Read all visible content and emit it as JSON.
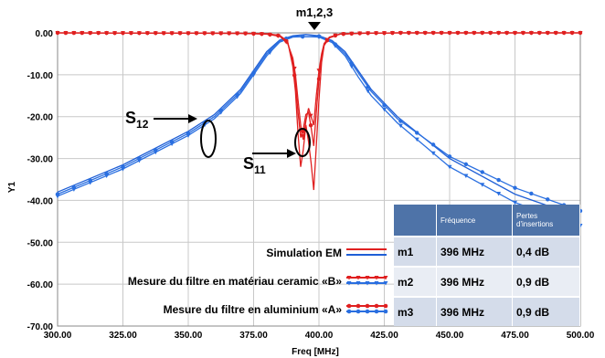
{
  "chart_data": {
    "type": "line",
    "xlabel": "Freq [MHz]",
    "ylabel": "Y1",
    "xlim": [
      300,
      500
    ],
    "ylim": [
      -70,
      0
    ],
    "x_ticks": [
      "300.00",
      "325.00",
      "350.00",
      "375.00",
      "400.00",
      "425.00",
      "450.00",
      "475.00",
      "500.00"
    ],
    "y_ticks": [
      "0.00",
      "-10.00",
      "-20.00",
      "-30.00",
      "-40.00",
      "-50.00",
      "-60.00",
      "-70.00"
    ],
    "grid": true,
    "marker_label": "m1,2,3",
    "s_labels": [
      {
        "main": "S",
        "sub": "12"
      },
      {
        "main": "S",
        "sub": "11"
      }
    ],
    "x": [
      300,
      325,
      350,
      360,
      370,
      375,
      380,
      385,
      390,
      395,
      400,
      405,
      410,
      415,
      420,
      430,
      450,
      475,
      500
    ],
    "series": [
      {
        "name": "Simulation EM",
        "param": "S12",
        "color": "#1f5fd6",
        "values": [
          -38.0,
          -31.5,
          -23.5,
          -19.5,
          -13.5,
          -9.0,
          -4.5,
          -1.7,
          -0.7,
          -0.4,
          -0.7,
          -1.8,
          -4.5,
          -9.0,
          -13.5,
          -20.0,
          -30.0,
          -38.5,
          -44.0
        ]
      },
      {
        "name": "Mesure du filtre en matériau ceramic «B»",
        "param": "S12",
        "color": "#2a6fe0",
        "values": [
          -39.0,
          -32.5,
          -24.5,
          -20.5,
          -14.5,
          -10.0,
          -5.5,
          -2.2,
          -1.0,
          -0.9,
          -1.0,
          -2.3,
          -5.5,
          -10.5,
          -15.0,
          -21.5,
          -32.0,
          -40.5,
          -46.0
        ]
      },
      {
        "name": "Mesure  du filtre en aluminium «A»",
        "param": "S12",
        "color": "#2a6fe0",
        "values": [
          -38.5,
          -32.0,
          -24.0,
          -20.0,
          -14.0,
          -9.5,
          -5.0,
          -1.9,
          -0.8,
          -0.9,
          -0.8,
          -2.0,
          -5.0,
          -9.5,
          -14.0,
          -20.5,
          -29.5,
          -37.0,
          -42.5
        ]
      }
    ],
    "s11_x": [
      300,
      370,
      380,
      385,
      388,
      390,
      391,
      392,
      393,
      394,
      395,
      396,
      397,
      398,
      399,
      400,
      401,
      402,
      404,
      408,
      415,
      430,
      500
    ],
    "s11_series": [
      {
        "name": "Simulation EM",
        "color": "#e02020",
        "values": [
          0,
          -0.1,
          -0.2,
          -0.6,
          -2.0,
          -8.0,
          -14.0,
          -24.0,
          -32.0,
          -28.0,
          -22.0,
          -26.0,
          -31.0,
          -37.5,
          -27.0,
          -16.0,
          -7.0,
          -3.0,
          -1.2,
          -0.3,
          -0.1,
          0,
          0
        ]
      },
      {
        "name": "Mesure du filtre en matériau ceramic «B»",
        "color": "#e02020",
        "values": [
          0,
          -0.1,
          -0.3,
          -0.8,
          -2.5,
          -6.0,
          -10.0,
          -16.0,
          -22.0,
          -25.5,
          -21.0,
          -18.0,
          -20.0,
          -22.0,
          -15.0,
          -9.0,
          -5.0,
          -2.5,
          -1.0,
          -0.3,
          -0.1,
          0,
          0
        ]
      },
      {
        "name": "Mesure  du filtre en aluminium «A»",
        "color": "#e02020",
        "values": [
          0,
          -0.1,
          -0.3,
          -0.7,
          -2.2,
          -7.0,
          -12.0,
          -19.0,
          -25.0,
          -23.0,
          -19.5,
          -19.0,
          -22.5,
          -27.0,
          -19.0,
          -11.0,
          -5.5,
          -2.7,
          -1.1,
          -0.3,
          -0.1,
          0,
          0
        ]
      }
    ],
    "legend": [
      {
        "label": "Simulation EM",
        "s11_color": "#e02020",
        "s12_color": "#1f5fd6",
        "style": "line"
      },
      {
        "label": "Mesure du filtre en matériau ceramic «B»",
        "s11_color": "#e02020",
        "s12_color": "#2a6fe0",
        "style": "triangle"
      },
      {
        "label": "Mesure  du filtre en aluminium «A»",
        "s11_color": "#e02020",
        "s12_color": "#2a6fe0",
        "style": "dot"
      }
    ],
    "marker_table": {
      "headers": [
        "",
        "Fréquence",
        "Pertes d'insertions"
      ],
      "rows": [
        [
          "m1",
          "396 MHz",
          "0,4 dB"
        ],
        [
          "m2",
          "396 MHz",
          "0,9 dB"
        ],
        [
          "m3",
          "396 MHz",
          "0,9 dB"
        ]
      ]
    }
  }
}
